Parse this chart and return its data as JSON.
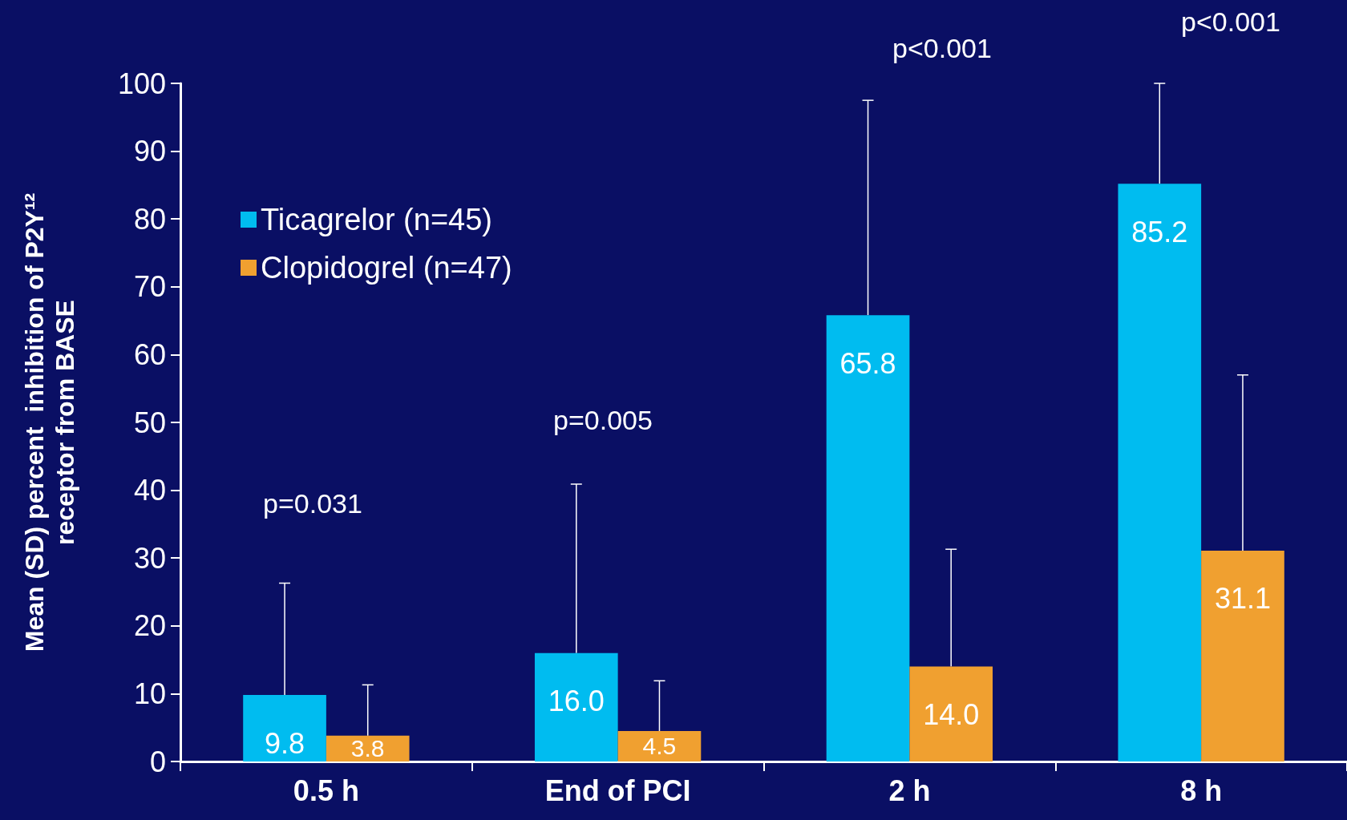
{
  "chart_data": {
    "type": "bar",
    "ylabel": "Mean (SD) percent  inhibition of P2Y¹²\nreceptor from BASE",
    "categories": [
      "0.5 h",
      "End of PCI",
      "2 h",
      "8 h"
    ],
    "series": [
      {
        "name": "Ticagrelor (n=45)",
        "color": "#00bcf0",
        "values": [
          9.8,
          16.0,
          65.8,
          85.2
        ],
        "value_labels": [
          "9.8",
          "16.0",
          "65.8",
          "85.2"
        ],
        "errors": [
          [
            9.8,
            26.3
          ],
          [
            16.0,
            40.9
          ],
          [
            65.8,
            97.5
          ],
          [
            85.2,
            100
          ]
        ]
      },
      {
        "name": "Clopidogrel (n=47)",
        "color": "#f0a030",
        "values": [
          3.8,
          4.5,
          14.0,
          31.1
        ],
        "value_labels": [
          "3.8",
          "4.5",
          "14.0",
          "31.1"
        ],
        "errors": [
          [
            3.8,
            11.3
          ],
          [
            4.5,
            11.9
          ],
          [
            14.0,
            31.3
          ],
          [
            31.1,
            57.0
          ]
        ]
      }
    ],
    "annotations": [
      "p=0.031",
      "p=0.005",
      "p<0.001",
      "p<0.001"
    ],
    "ylim": [
      0,
      100
    ],
    "yticks": [
      0,
      10,
      20,
      30,
      40,
      50,
      60,
      70,
      80,
      90,
      100
    ],
    "grid": false,
    "legend": "top left"
  }
}
